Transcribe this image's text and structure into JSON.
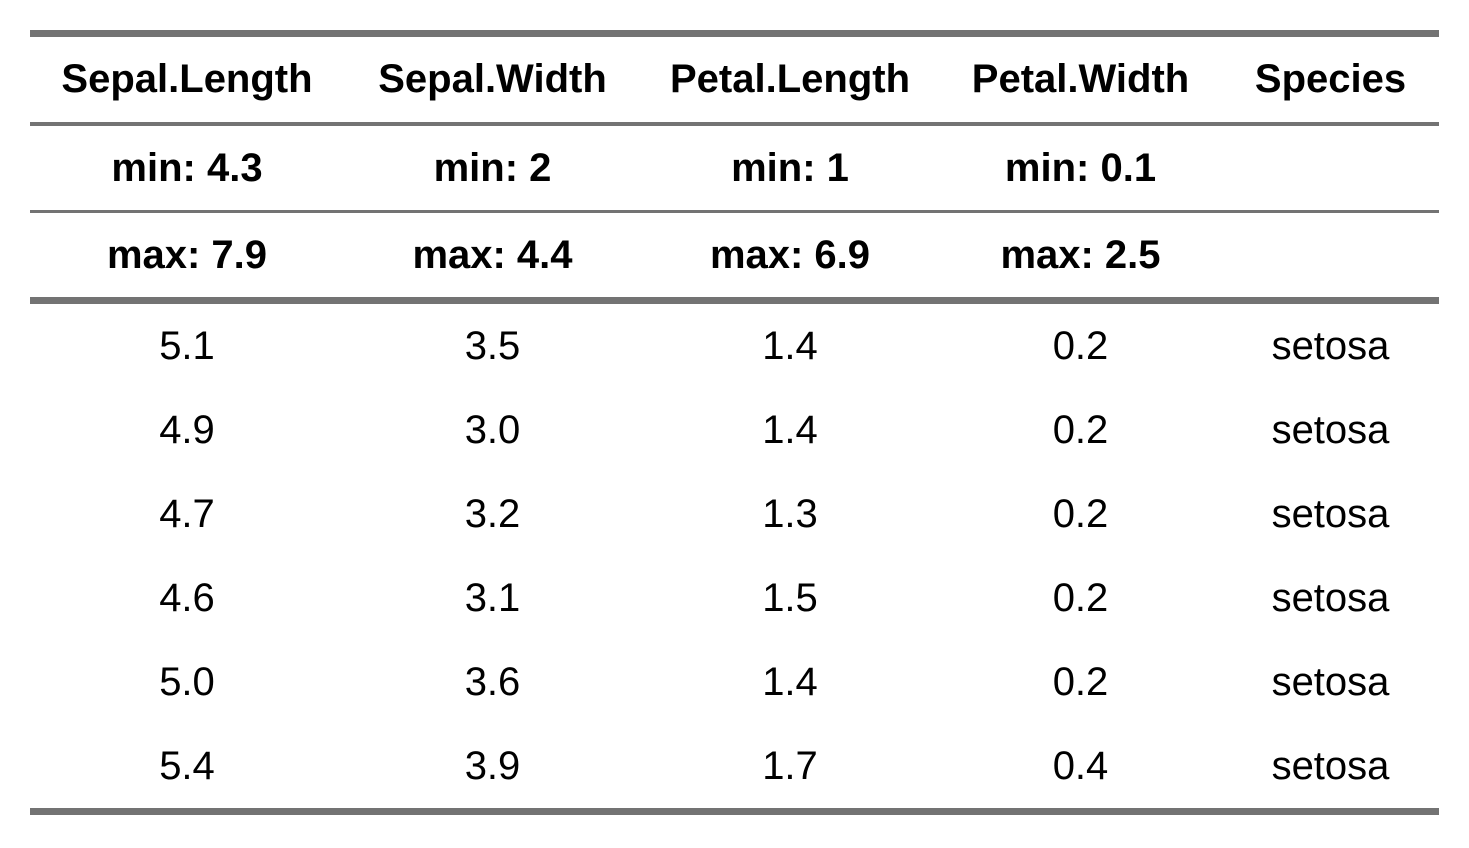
{
  "table": {
    "columns": [
      "Sepal.Length",
      "Sepal.Width",
      "Petal.Length",
      "Petal.Width",
      "Species"
    ],
    "min_row": [
      "min: 4.3",
      "min: 2",
      "min: 1",
      "min: 0.1",
      ""
    ],
    "max_row": [
      "max: 7.9",
      "max: 4.4",
      "max: 6.9",
      "max: 2.5",
      ""
    ],
    "rows": [
      [
        "5.1",
        "3.5",
        "1.4",
        "0.2",
        "setosa"
      ],
      [
        "4.9",
        "3.0",
        "1.4",
        "0.2",
        "setosa"
      ],
      [
        "4.7",
        "3.2",
        "1.3",
        "0.2",
        "setosa"
      ],
      [
        "4.6",
        "3.1",
        "1.5",
        "0.2",
        "setosa"
      ],
      [
        "5.0",
        "3.6",
        "1.4",
        "0.2",
        "setosa"
      ],
      [
        "5.4",
        "3.9",
        "1.7",
        "0.4",
        "setosa"
      ]
    ],
    "rule_color": "#737373"
  }
}
